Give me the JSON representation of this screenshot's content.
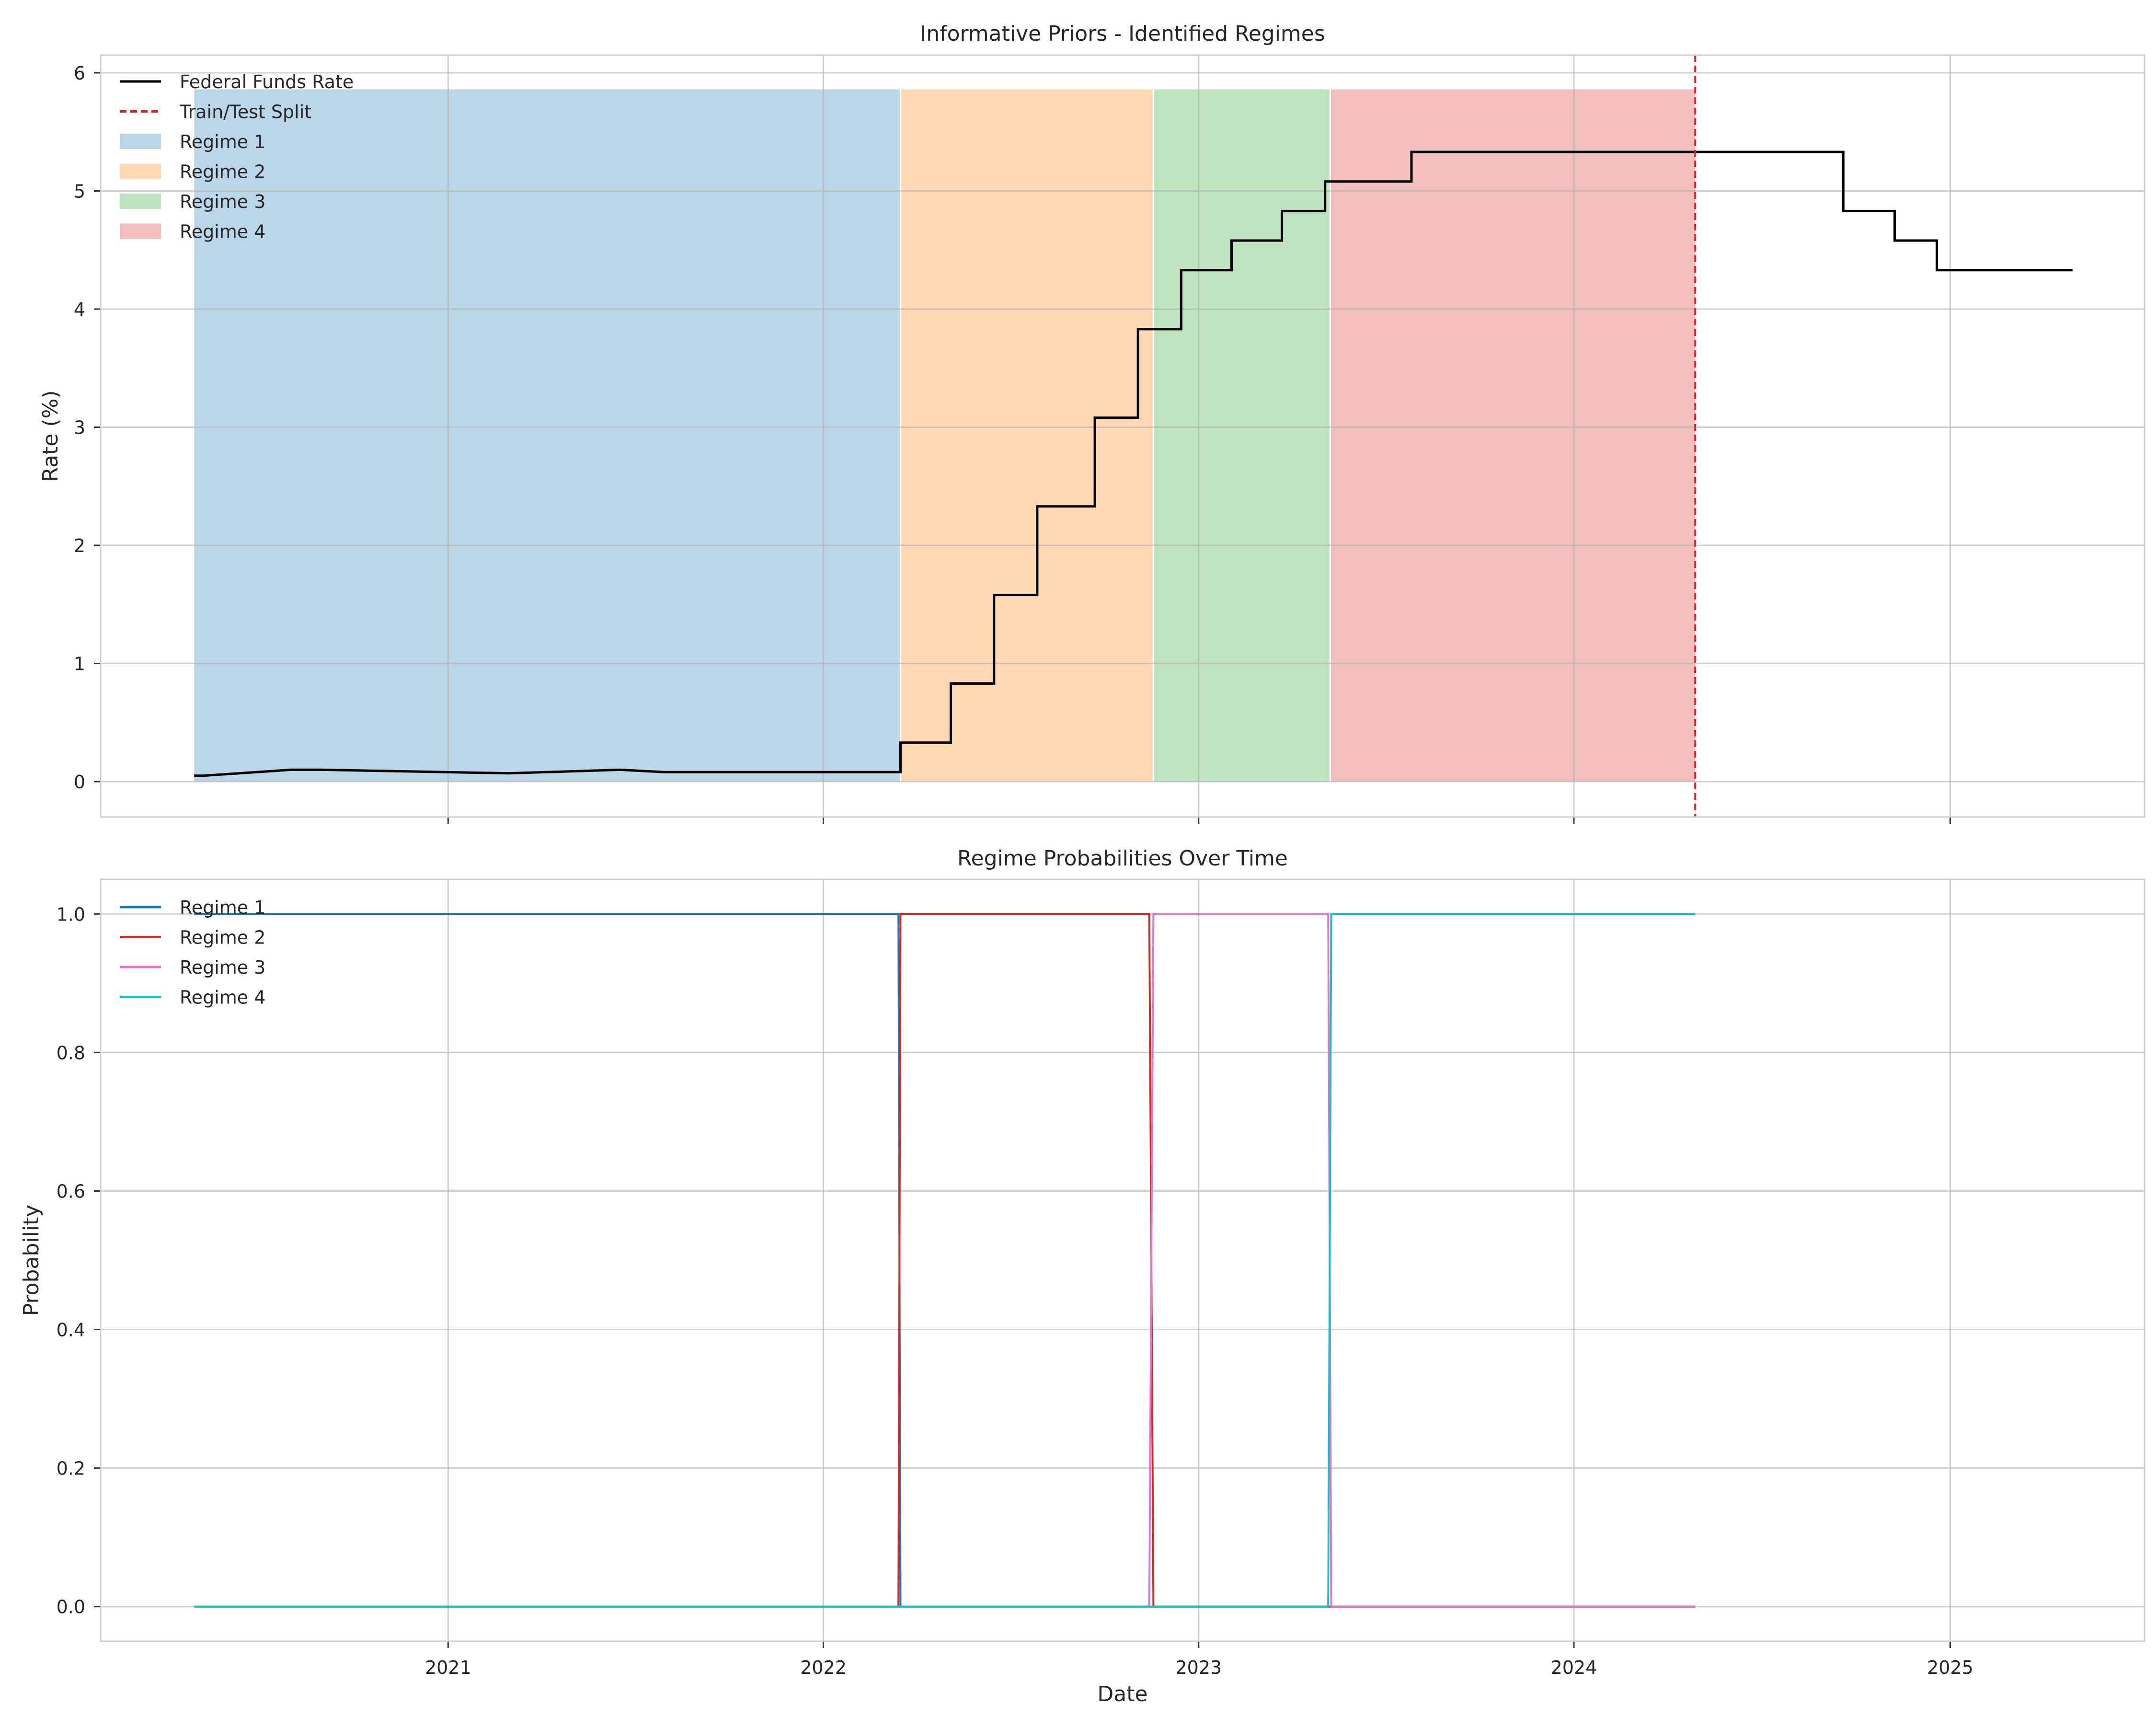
{
  "chart_data": [
    {
      "type": "line",
      "title": "Informative Priors - Identified Regimes",
      "xlabel": "",
      "ylabel": "Rate (%)",
      "xlim": [
        "2020-01-29",
        "2025-07-09"
      ],
      "ylim": [
        -0.3,
        6.15
      ],
      "yticks": [
        0,
        1,
        2,
        3,
        4,
        5,
        6
      ],
      "grid": true,
      "legend_position": "upper-left",
      "legend": [
        {
          "label": "Federal Funds Rate",
          "kind": "line",
          "color": "#000000"
        },
        {
          "label": "Train/Test Split",
          "kind": "dashed",
          "color": "#d62728"
        },
        {
          "label": "Regime 1",
          "kind": "patch",
          "color": "#1f77b4"
        },
        {
          "label": "Regime 2",
          "kind": "patch",
          "color": "#ff7f0e"
        },
        {
          "label": "Regime 3",
          "kind": "patch",
          "color": "#2ca02c"
        },
        {
          "label": "Regime 4",
          "kind": "patch",
          "color": "#d62728"
        }
      ],
      "regimes": [
        {
          "name": "Regime 1",
          "start": "2020-04-29",
          "end": "2022-03-17",
          "color": "#1f77b4"
        },
        {
          "name": "Regime 2",
          "start": "2022-03-17",
          "end": "2022-11-18",
          "color": "#ff7f0e"
        },
        {
          "name": "Regime 3",
          "start": "2022-11-18",
          "end": "2023-05-09",
          "color": "#2ca02c"
        },
        {
          "name": "Regime 4",
          "start": "2023-05-09",
          "end": "2024-04-28",
          "color": "#d62728"
        }
      ],
      "regime_top": 5.86,
      "split_date": "2024-04-28",
      "series": [
        {
          "name": "Federal Funds Rate",
          "color": "#000000",
          "points": [
            [
              "2020-04-29",
              0.05
            ],
            [
              "2020-05-08",
              0.05
            ],
            [
              "2020-06-29",
              0.08
            ],
            [
              "2020-08-01",
              0.1
            ],
            [
              "2020-09-01",
              0.1
            ],
            [
              "2021-03-01",
              0.07
            ],
            [
              "2021-06-17",
              0.1
            ],
            [
              "2021-07-30",
              0.08
            ],
            [
              "2022-03-17",
              0.08
            ],
            [
              "2022-03-17",
              0.33
            ],
            [
              "2022-05-05",
              0.33
            ],
            [
              "2022-05-05",
              0.83
            ],
            [
              "2022-06-16",
              0.83
            ],
            [
              "2022-06-16",
              1.58
            ],
            [
              "2022-07-28",
              1.58
            ],
            [
              "2022-07-28",
              2.33
            ],
            [
              "2022-09-22",
              2.33
            ],
            [
              "2022-09-22",
              3.08
            ],
            [
              "2022-11-03",
              3.08
            ],
            [
              "2022-11-03",
              3.83
            ],
            [
              "2022-12-15",
              3.83
            ],
            [
              "2022-12-15",
              4.33
            ],
            [
              "2023-02-02",
              4.33
            ],
            [
              "2023-02-02",
              4.58
            ],
            [
              "2023-03-23",
              4.58
            ],
            [
              "2023-03-23",
              4.83
            ],
            [
              "2023-05-04",
              4.83
            ],
            [
              "2023-05-04",
              5.08
            ],
            [
              "2023-07-27",
              5.08
            ],
            [
              "2023-07-27",
              5.33
            ],
            [
              "2024-09-19",
              5.33
            ],
            [
              "2024-09-19",
              4.83
            ],
            [
              "2024-11-08",
              4.83
            ],
            [
              "2024-11-08",
              4.58
            ],
            [
              "2024-12-19",
              4.58
            ],
            [
              "2024-12-19",
              4.33
            ],
            [
              "2025-04-30",
              4.33
            ]
          ]
        }
      ]
    },
    {
      "type": "line",
      "title": "Regime Probabilities Over Time",
      "xlabel": "Date",
      "ylabel": "Probability",
      "xlim": [
        "2020-01-29",
        "2025-07-09"
      ],
      "ylim": [
        -0.05,
        1.05
      ],
      "yticks": [
        0.0,
        0.2,
        0.4,
        0.6,
        0.8,
        1.0
      ],
      "xticks": [
        "2021",
        "2022",
        "2023",
        "2024",
        "2025"
      ],
      "grid": true,
      "legend_position": "upper-left",
      "series": [
        {
          "name": "Regime 1",
          "color": "#1f77b4",
          "points": [
            [
              "2020-04-29",
              1.0
            ],
            [
              "2022-03-15",
              1.0
            ],
            [
              "2022-03-17",
              0.0
            ],
            [
              "2024-04-28",
              0.0
            ]
          ]
        },
        {
          "name": "Regime 2",
          "color": "#d62728",
          "points": [
            [
              "2020-04-29",
              0.0
            ],
            [
              "2022-03-15",
              0.0
            ],
            [
              "2022-03-17",
              1.0
            ],
            [
              "2022-11-14",
              1.0
            ],
            [
              "2022-11-18",
              0.0
            ],
            [
              "2024-04-28",
              0.0
            ]
          ]
        },
        {
          "name": "Regime 3",
          "color": "#e377c2",
          "points": [
            [
              "2020-04-29",
              0.0
            ],
            [
              "2022-11-14",
              0.0
            ],
            [
              "2022-11-18",
              1.0
            ],
            [
              "2023-05-07",
              1.0
            ],
            [
              "2023-05-10",
              0.0
            ],
            [
              "2024-04-28",
              0.0
            ]
          ]
        },
        {
          "name": "Regime 4",
          "color": "#17becf",
          "points": [
            [
              "2020-04-29",
              0.0
            ],
            [
              "2023-05-07",
              0.0
            ],
            [
              "2023-05-10",
              1.0
            ],
            [
              "2024-04-28",
              1.0
            ]
          ]
        }
      ]
    }
  ]
}
